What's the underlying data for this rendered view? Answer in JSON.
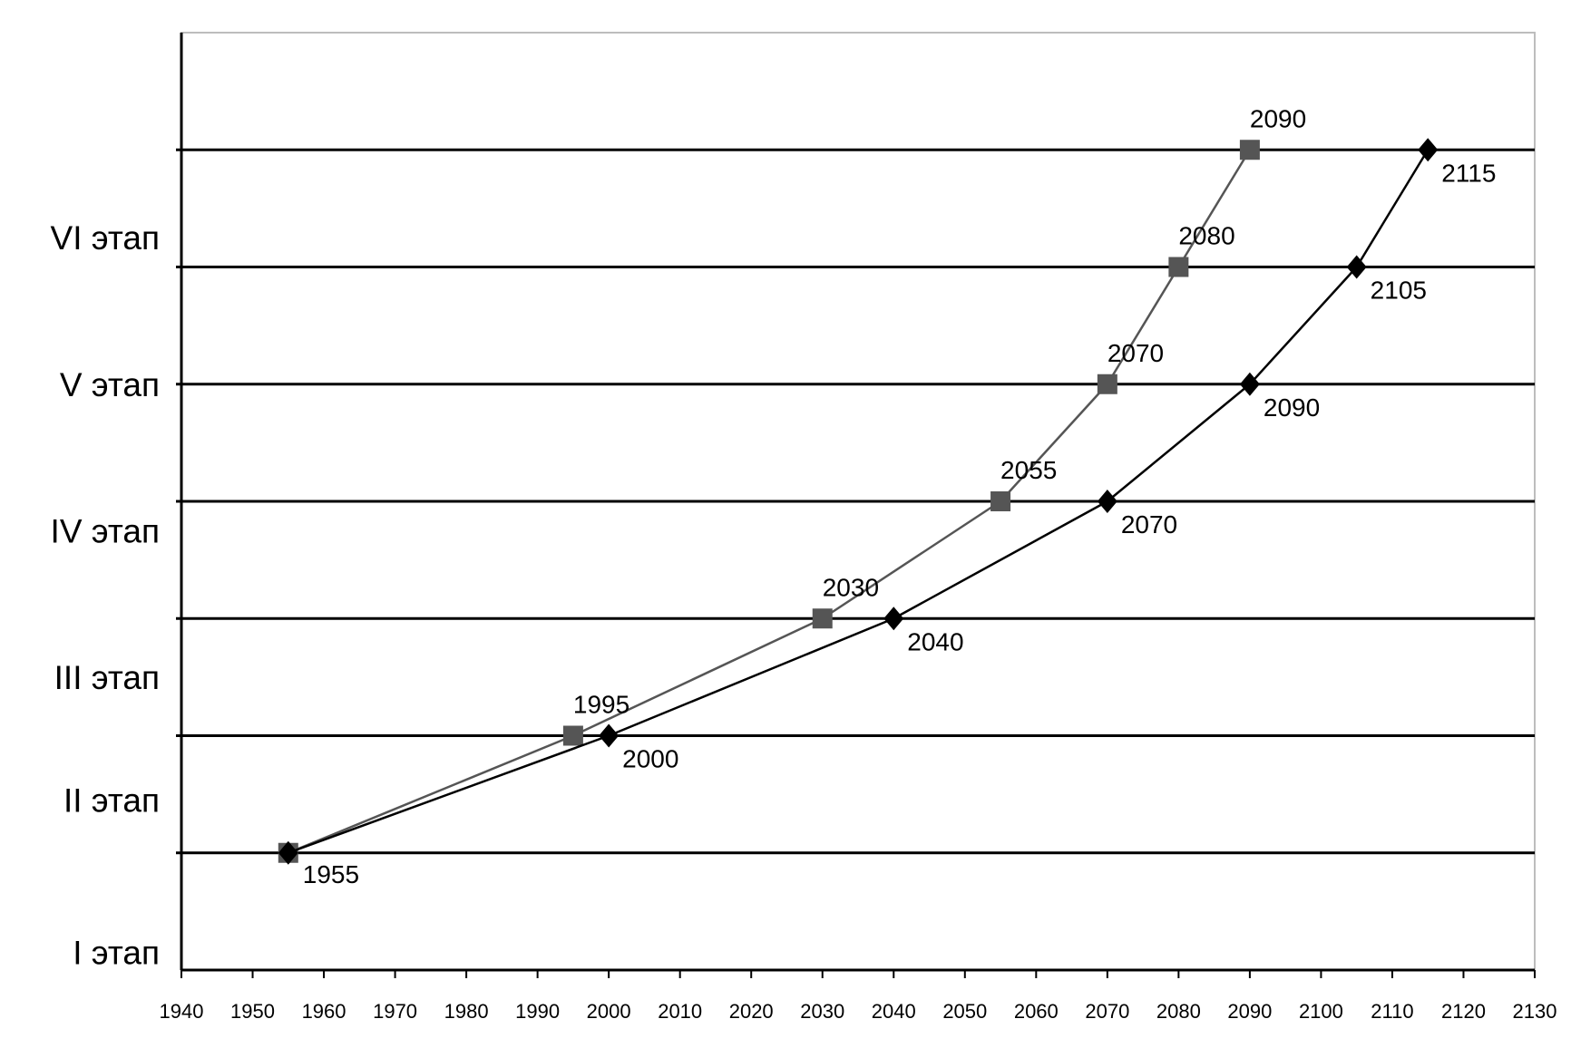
{
  "chart_data": {
    "type": "line",
    "xlim": [
      1940,
      2130
    ],
    "x_ticks": [
      1940,
      1950,
      1960,
      1970,
      1980,
      1990,
      2000,
      2010,
      2020,
      2030,
      2040,
      2050,
      2060,
      2070,
      2080,
      2090,
      2100,
      2110,
      2120,
      2130
    ],
    "ylim": [
      0,
      8
    ],
    "y_gridlines": [
      1,
      2,
      3,
      4,
      5,
      6,
      7
    ],
    "y_labels": [
      {
        "text": "I этап",
        "y": 0.15
      },
      {
        "text": "II этап",
        "y": 1.45
      },
      {
        "text": "III этап",
        "y": 2.5
      },
      {
        "text": "IV этап",
        "y": 3.75
      },
      {
        "text": "V этап",
        "y": 5.0
      },
      {
        "text": "VI этап",
        "y": 6.25
      }
    ],
    "grid": true,
    "legend": "none",
    "series": [
      {
        "marker": "square",
        "color": "#555555",
        "points": [
          {
            "x": 1955,
            "y": 1.0,
            "label": "1955"
          },
          {
            "x": 1995,
            "y": 2.0,
            "label": "1995"
          },
          {
            "x": 2030,
            "y": 3.0,
            "label": "2030"
          },
          {
            "x": 2055,
            "y": 4.0,
            "label": "2055"
          },
          {
            "x": 2070,
            "y": 5.0,
            "label": "2070"
          },
          {
            "x": 2080,
            "y": 6.0,
            "label": "2080"
          },
          {
            "x": 2090,
            "y": 7.0,
            "label": "2090"
          }
        ]
      },
      {
        "marker": "diamond",
        "color": "#000000",
        "points": [
          {
            "x": 1955,
            "y": 1.0,
            "label": ""
          },
          {
            "x": 2000,
            "y": 2.0,
            "label": "2000"
          },
          {
            "x": 2040,
            "y": 3.0,
            "label": "2040"
          },
          {
            "x": 2070,
            "y": 4.0,
            "label": "2070"
          },
          {
            "x": 2090,
            "y": 5.0,
            "label": "2090"
          },
          {
            "x": 2105,
            "y": 6.0,
            "label": "2105"
          },
          {
            "x": 2115,
            "y": 7.0,
            "label": "2115"
          }
        ]
      }
    ]
  }
}
